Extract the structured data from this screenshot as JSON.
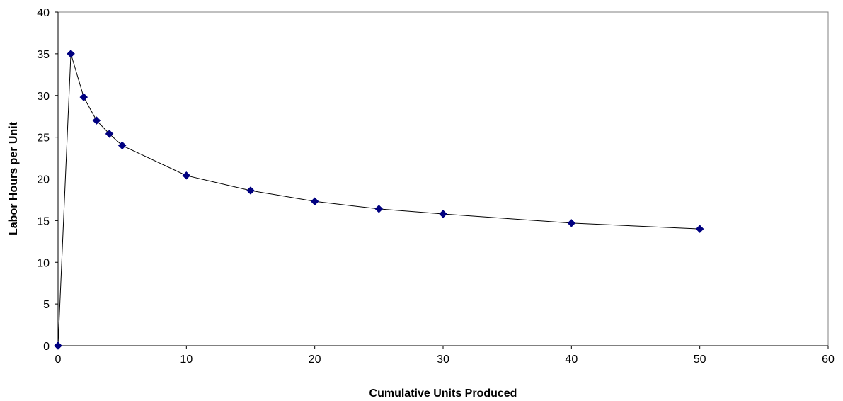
{
  "chart_data": {
    "type": "scatter",
    "title": "",
    "xlabel": "Cumulative Units Produced",
    "ylabel": "Labor Hours per Unit",
    "xlim": [
      0,
      60
    ],
    "ylim": [
      0,
      40
    ],
    "xticks": [
      0,
      10,
      20,
      30,
      40,
      50,
      60
    ],
    "yticks": [
      0,
      5,
      10,
      15,
      20,
      25,
      30,
      35,
      40
    ],
    "grid": false,
    "legend": "none",
    "series": [
      {
        "color": "#000080",
        "line_color": "#000000",
        "marker": "diamond",
        "x": [
          0,
          1,
          2,
          3,
          4,
          5,
          10,
          15,
          20,
          25,
          30,
          40,
          50
        ],
        "y": [
          0,
          35,
          29.8,
          27.0,
          25.4,
          24.0,
          20.4,
          18.6,
          17.3,
          16.4,
          15.8,
          14.7,
          14.0
        ]
      }
    ]
  }
}
